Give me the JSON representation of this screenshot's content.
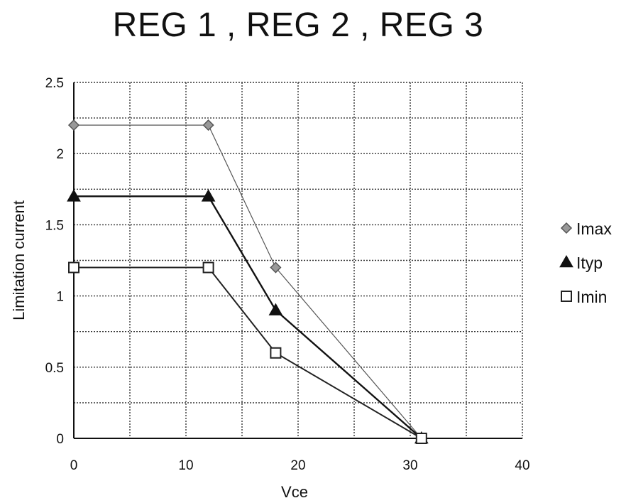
{
  "chart_data": {
    "type": "line",
    "title": "REG 1 , REG 2 , REG 3",
    "xlabel": "Vce",
    "ylabel": "Limitation current",
    "xlim": [
      0,
      40
    ],
    "ylim": [
      0,
      2.5
    ],
    "x_ticks": [
      0,
      10,
      20,
      30,
      40
    ],
    "y_ticks": [
      0,
      0.5,
      1,
      1.5,
      2,
      2.5
    ],
    "x_tick_labels": [
      "0",
      "10",
      "20",
      "30",
      "40"
    ],
    "y_tick_labels": [
      "0",
      "0.5",
      "1",
      "1.5",
      "2",
      "2.5"
    ],
    "x_grid_step": 5,
    "y_grid_step": 0.25,
    "grid": true,
    "legend_position": "right",
    "series": [
      {
        "name": "Imax",
        "marker": "diamond",
        "color": "#555555",
        "x": [
          0,
          12,
          18,
          31
        ],
        "y": [
          2.2,
          2.2,
          1.2,
          0
        ]
      },
      {
        "name": "Ityp",
        "marker": "triangle",
        "color": "#111111",
        "x": [
          0,
          12,
          18,
          31
        ],
        "y": [
          1.7,
          1.7,
          0.9,
          0
        ]
      },
      {
        "name": "Imin",
        "marker": "square",
        "color": "#222222",
        "x": [
          0,
          12,
          18,
          31
        ],
        "y": [
          1.2,
          1.2,
          0.6,
          0
        ]
      }
    ]
  }
}
